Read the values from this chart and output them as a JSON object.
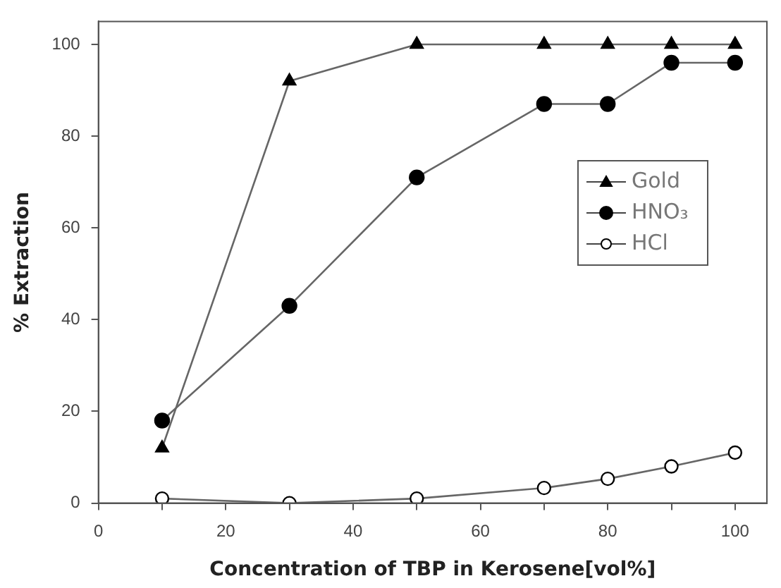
{
  "chart_data": {
    "type": "line",
    "xlabel": "Concentration of TBP in Kerosene[vol%]",
    "ylabel": "% Extraction",
    "x": [
      10,
      30,
      50,
      70,
      80,
      90,
      100
    ],
    "series": [
      {
        "name": "Gold",
        "color": "#000000",
        "marker": "triangle",
        "values": [
          12,
          92,
          100,
          100,
          100,
          100,
          100
        ]
      },
      {
        "name": "HNO₃",
        "color": "#000000",
        "marker": "circle",
        "values": [
          18,
          43,
          71,
          87,
          87,
          96,
          96
        ]
      },
      {
        "name": "HCl",
        "color": "#000000",
        "marker": "circle-open",
        "values": [
          1,
          0,
          1,
          3.3,
          5.3,
          8,
          11
        ]
      }
    ],
    "xlim": [
      0,
      105
    ],
    "xticks": [
      0,
      {
        "value": 10,
        "label": null
      },
      20,
      {
        "value": 30,
        "label": null
      },
      40,
      {
        "value": 50,
        "label": null
      },
      60,
      {
        "value": 70,
        "label": null
      },
      80,
      {
        "value": 90,
        "label": null
      },
      100
    ],
    "ylim": [
      0,
      105
    ],
    "yticks": [
      0,
      20,
      40,
      60,
      80,
      100
    ],
    "grid": false,
    "legend": "right",
    "line_style": "solid"
  }
}
